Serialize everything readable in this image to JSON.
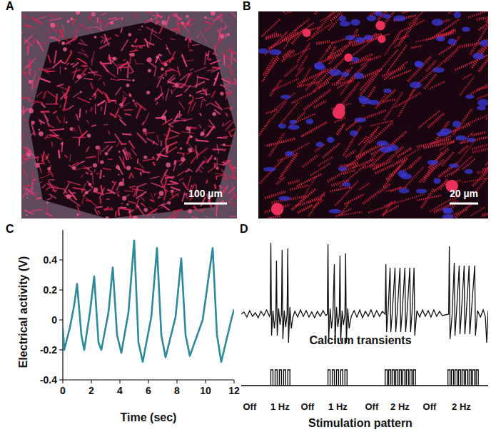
{
  "panels": [
    {
      "label": "A",
      "scale_bar": "100 µm"
    },
    {
      "label": "B",
      "scale_bar": "20 µm"
    }
  ],
  "chart_data": [
    {
      "panel_label": "C",
      "type": "line",
      "x_label": "Time (sec)",
      "y_label": "Electrical activity (V)",
      "x": [
        0,
        0.1,
        0.5,
        0.8,
        1.0,
        1.3,
        1.5,
        1.9,
        2.2,
        2.5,
        2.7,
        3.2,
        3.5,
        3.8,
        4.1,
        4.6,
        5.0,
        5.3,
        5.6,
        6.2,
        6.6,
        6.9,
        7.2,
        7.9,
        8.3,
        8.6,
        8.9,
        9.8,
        10.5,
        10.8,
        11.1,
        11.8,
        12
      ],
      "values": [
        -0.05,
        -0.2,
        -0.05,
        0.1,
        0.24,
        -0.1,
        -0.2,
        0.05,
        0.29,
        -0.15,
        -0.2,
        0.05,
        0.35,
        -0.1,
        -0.22,
        0.05,
        0.53,
        -0.15,
        -0.28,
        0.02,
        0.48,
        -0.1,
        -0.25,
        0.02,
        0.41,
        -0.1,
        -0.24,
        0.0,
        0.48,
        -0.1,
        -0.28,
        0.0,
        0.07
      ],
      "color": "#2b8a9e",
      "xlim": [
        0,
        12
      ],
      "ylim": [
        -0.4,
        0.6
      ],
      "xticks": [
        0,
        2,
        4,
        6,
        8,
        10,
        12
      ],
      "yticks": [
        -0.4,
        -0.2,
        0,
        0.2,
        0.4
      ],
      "grid": false
    },
    {
      "panel_label": "D",
      "type": "line",
      "tick_labels": false,
      "x": [
        0,
        4,
        8,
        12,
        16,
        20,
        24,
        28,
        32,
        36,
        40,
        41,
        42,
        43,
        45,
        47,
        49,
        50,
        51,
        53,
        55,
        57,
        58,
        59,
        61,
        63,
        65,
        66,
        67,
        69,
        71,
        73,
        76,
        80,
        84,
        88,
        92,
        96,
        100,
        104,
        108,
        112,
        116,
        120,
        122,
        123,
        124,
        126,
        128,
        130,
        132,
        133,
        135,
        137,
        139,
        140,
        141,
        143,
        145,
        147,
        148,
        149,
        151,
        153,
        156,
        160,
        164,
        168,
        172,
        176,
        180,
        184,
        188,
        192,
        196,
        200,
        204,
        205,
        206,
        208,
        211,
        212,
        214,
        218,
        219,
        221,
        225,
        226,
        228,
        232,
        233,
        235,
        239,
        240,
        242,
        245,
        246,
        249,
        253,
        257,
        261,
        265,
        269,
        273,
        277,
        281,
        285,
        294,
        295,
        296,
        299,
        302,
        303,
        305,
        309,
        310,
        312,
        316,
        317,
        319,
        323,
        324,
        326,
        331,
        332,
        335,
        339,
        343,
        346,
        348,
        350
      ],
      "values": [
        0,
        3,
        -4,
        5,
        -3,
        2,
        -5,
        4,
        -2,
        6,
        -3,
        0,
        100,
        -30,
        5,
        -20,
        0,
        75,
        -30,
        8,
        -15,
        0,
        90,
        -35,
        5,
        -18,
        0,
        92,
        -40,
        10,
        -20,
        -5,
        4,
        -4,
        6,
        -3,
        5,
        -4,
        3,
        -5,
        4,
        -3,
        5,
        -2,
        0,
        98,
        -35,
        8,
        -20,
        0,
        70,
        -40,
        10,
        -18,
        0,
        82,
        -38,
        5,
        -15,
        0,
        85,
        -40,
        8,
        -20,
        -3,
        5,
        -4,
        6,
        -5,
        4,
        -3,
        6,
        -4,
        5,
        -3,
        4,
        0,
        70,
        -25,
        0,
        65,
        -25,
        0,
        65,
        -25,
        0,
        65,
        -25,
        0,
        65,
        -25,
        0,
        65,
        -25,
        0,
        65,
        -30,
        5,
        -4,
        6,
        -3,
        5,
        -4,
        6,
        -3,
        4,
        -2,
        0,
        95,
        -35,
        0,
        72,
        -30,
        0,
        68,
        -28,
        0,
        68,
        -28,
        0,
        68,
        -28,
        0,
        68,
        -30,
        5,
        -4,
        6,
        -3,
        -40,
        5
      ],
      "color": "#111111",
      "xlim": [
        0,
        350
      ],
      "ylim": [
        -60,
        110
      ],
      "annotations": [
        "Calcium transients",
        "Stimulation pattern"
      ],
      "pulses": [
        42,
        48,
        54,
        60,
        66,
        123,
        129,
        135,
        141,
        147,
        204,
        209,
        214,
        219,
        224,
        229,
        234,
        239,
        244,
        293,
        298,
        303,
        308,
        313,
        318,
        323,
        328,
        333
      ],
      "pulse_width": 3,
      "segment_labels": {
        "x": [
          12,
          55,
          94,
          137,
          185,
          225,
          267,
          312
        ],
        "labels": [
          "Off",
          "1 Hz",
          "Off",
          "1 Hz",
          "Off",
          "2 Hz",
          "Off",
          "2 Hz"
        ]
      }
    }
  ]
}
